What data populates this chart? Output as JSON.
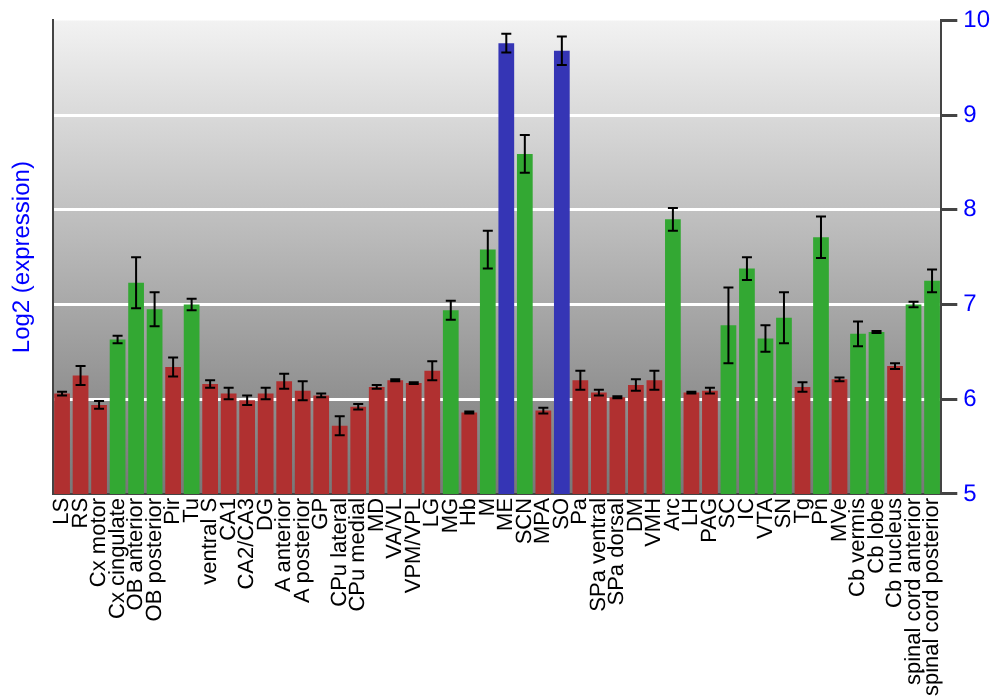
{
  "chart_data": {
    "type": "bar",
    "ylabel": "Log2 (expression)",
    "categories": [
      "LS",
      "RS",
      "Cx motor",
      "Cx cingulate",
      "OB anterior",
      "OB posterior",
      "Pir",
      "Tu",
      "ventral S",
      "CA1",
      "CA2/CA3",
      "DG",
      "A anterior",
      "A posterior",
      "GP",
      "CPu lateral",
      "CPu medial",
      "MD",
      "VA/VL",
      "VPM/VPL",
      "LG",
      "MG",
      "Hb",
      "M",
      "ME",
      "SCN",
      "MPA",
      "SO",
      "Pa",
      "SPa ventral",
      "SPa dorsal",
      "DM",
      "VMH",
      "Arc",
      "LH",
      "PAG",
      "SC",
      "IC",
      "VTA",
      "SN",
      "Tg",
      "Pn",
      "MVe",
      "Cb vermis",
      "Cb lobe",
      "Cb nucleus",
      "spinal cord anterior",
      "spinal cord posterior"
    ],
    "values": [
      6.06,
      6.25,
      5.94,
      6.63,
      7.23,
      6.95,
      6.34,
      7.0,
      6.16,
      6.06,
      5.99,
      6.06,
      6.19,
      6.09,
      6.04,
      5.72,
      5.92,
      6.13,
      6.2,
      6.17,
      6.3,
      6.94,
      5.86,
      7.58,
      9.76,
      8.59,
      5.88,
      9.68,
      6.2,
      6.07,
      6.02,
      6.15,
      6.2,
      7.9,
      6.07,
      6.09,
      6.78,
      7.38,
      6.64,
      6.86,
      6.13,
      7.71,
      6.21,
      6.69,
      6.71,
      6.35,
      7.0,
      7.25
    ],
    "errors": [
      0.02,
      0.1,
      0.04,
      0.04,
      0.27,
      0.18,
      0.1,
      0.06,
      0.04,
      0.06,
      0.05,
      0.06,
      0.08,
      0.1,
      0.02,
      0.1,
      0.03,
      0.02,
      0.01,
      0.01,
      0.1,
      0.1,
      0.01,
      0.2,
      0.1,
      0.2,
      0.03,
      0.15,
      0.1,
      0.03,
      0.01,
      0.06,
      0.1,
      0.12,
      0.01,
      0.03,
      0.4,
      0.12,
      0.14,
      0.27,
      0.05,
      0.22,
      0.02,
      0.13,
      0.01,
      0.03,
      0.03,
      0.12
    ],
    "colors": [
      "#b03030",
      "#b03030",
      "#b03030",
      "#33a833",
      "#33a833",
      "#33a833",
      "#b03030",
      "#33a833",
      "#b03030",
      "#b03030",
      "#b03030",
      "#b03030",
      "#b03030",
      "#b03030",
      "#b03030",
      "#b03030",
      "#b03030",
      "#b03030",
      "#b03030",
      "#b03030",
      "#b03030",
      "#33a833",
      "#b03030",
      "#33a833",
      "#3535b5",
      "#33a833",
      "#b03030",
      "#3535b5",
      "#b03030",
      "#b03030",
      "#b03030",
      "#b03030",
      "#b03030",
      "#33a833",
      "#b03030",
      "#b03030",
      "#33a833",
      "#33a833",
      "#33a833",
      "#33a833",
      "#b03030",
      "#33a833",
      "#b03030",
      "#33a833",
      "#33a833",
      "#b03030",
      "#33a833",
      "#33a833"
    ],
    "ylim": [
      5,
      10
    ],
    "yticks": [
      5,
      6,
      7,
      8,
      9,
      10
    ],
    "grid": "y",
    "legend": false
  }
}
